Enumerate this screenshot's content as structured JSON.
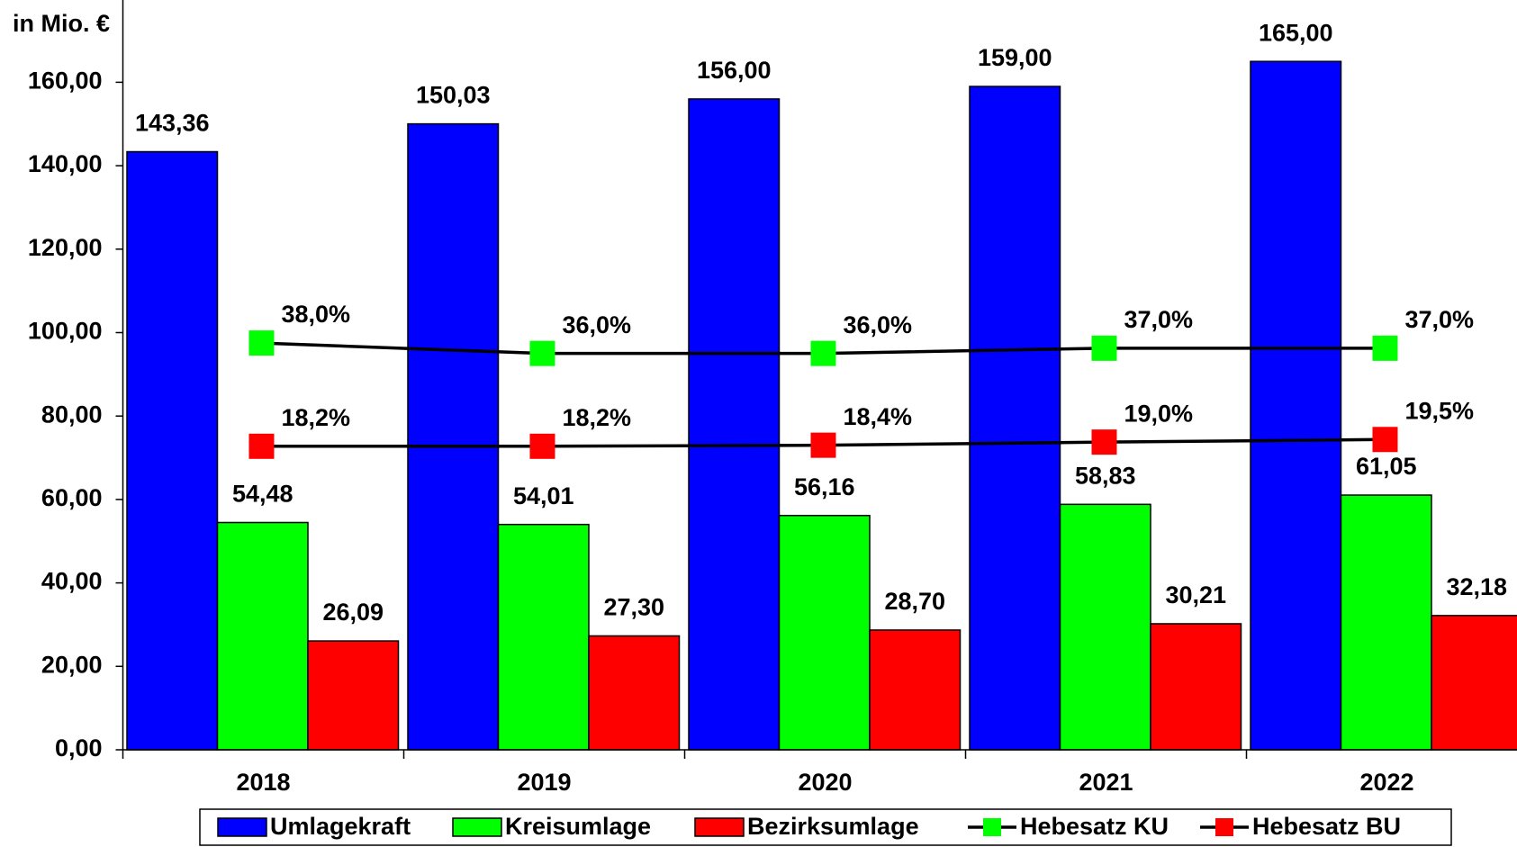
{
  "chart_data": {
    "type": "bar",
    "y_axis_label": "in Mio. €",
    "categories": [
      "2018",
      "2019",
      "2020",
      "2021",
      "2022"
    ],
    "ylim": [
      0,
      180
    ],
    "yticks": [
      {
        "value": 0,
        "label": "0,00"
      },
      {
        "value": 20,
        "label": "20,00"
      },
      {
        "value": 40,
        "label": "40,00"
      },
      {
        "value": 60,
        "label": "60,00"
      },
      {
        "value": 80,
        "label": "80,00"
      },
      {
        "value": 100,
        "label": "100,00"
      },
      {
        "value": 120,
        "label": "120,00"
      },
      {
        "value": 140,
        "label": "140,00"
      },
      {
        "value": 160,
        "label": "160,00"
      }
    ],
    "y2lim": [
      -40,
      104
    ],
    "series": [
      {
        "name": "Umlagekraft",
        "type": "bar",
        "color": "#0000ff",
        "values": [
          143.36,
          150.03,
          156.0,
          159.0,
          165.0
        ],
        "value_labels": [
          "143,36",
          "150,03",
          "156,00",
          "159,00",
          "165,00"
        ]
      },
      {
        "name": "Kreisumlage",
        "type": "bar",
        "color": "#00ff00",
        "values": [
          54.48,
          54.01,
          56.16,
          58.83,
          61.05
        ],
        "value_labels": [
          "54,48",
          "54,01",
          "56,16",
          "58,83",
          "61,05"
        ]
      },
      {
        "name": "Bezirksumlage",
        "type": "bar",
        "color": "#ff0000",
        "values": [
          26.09,
          27.3,
          28.7,
          30.21,
          32.18
        ],
        "value_labels": [
          "26,09",
          "27,30",
          "28,70",
          "30,21",
          "32,18"
        ]
      },
      {
        "name": "Hebesatz KU",
        "type": "line",
        "axis": "y2",
        "color": "#00ff00",
        "values": [
          38.0,
          36.0,
          36.0,
          37.0,
          37.0
        ],
        "value_labels": [
          "38,0%",
          "36,0%",
          "36,0%",
          "37,0%",
          "37,0%"
        ]
      },
      {
        "name": "Hebesatz BU",
        "type": "line",
        "axis": "y2",
        "color": "#ff0000",
        "values": [
          18.2,
          18.2,
          18.4,
          19.0,
          19.5
        ],
        "value_labels": [
          "18,2%",
          "18,2%",
          "18,4%",
          "19,0%",
          "19,5%"
        ]
      }
    ]
  }
}
